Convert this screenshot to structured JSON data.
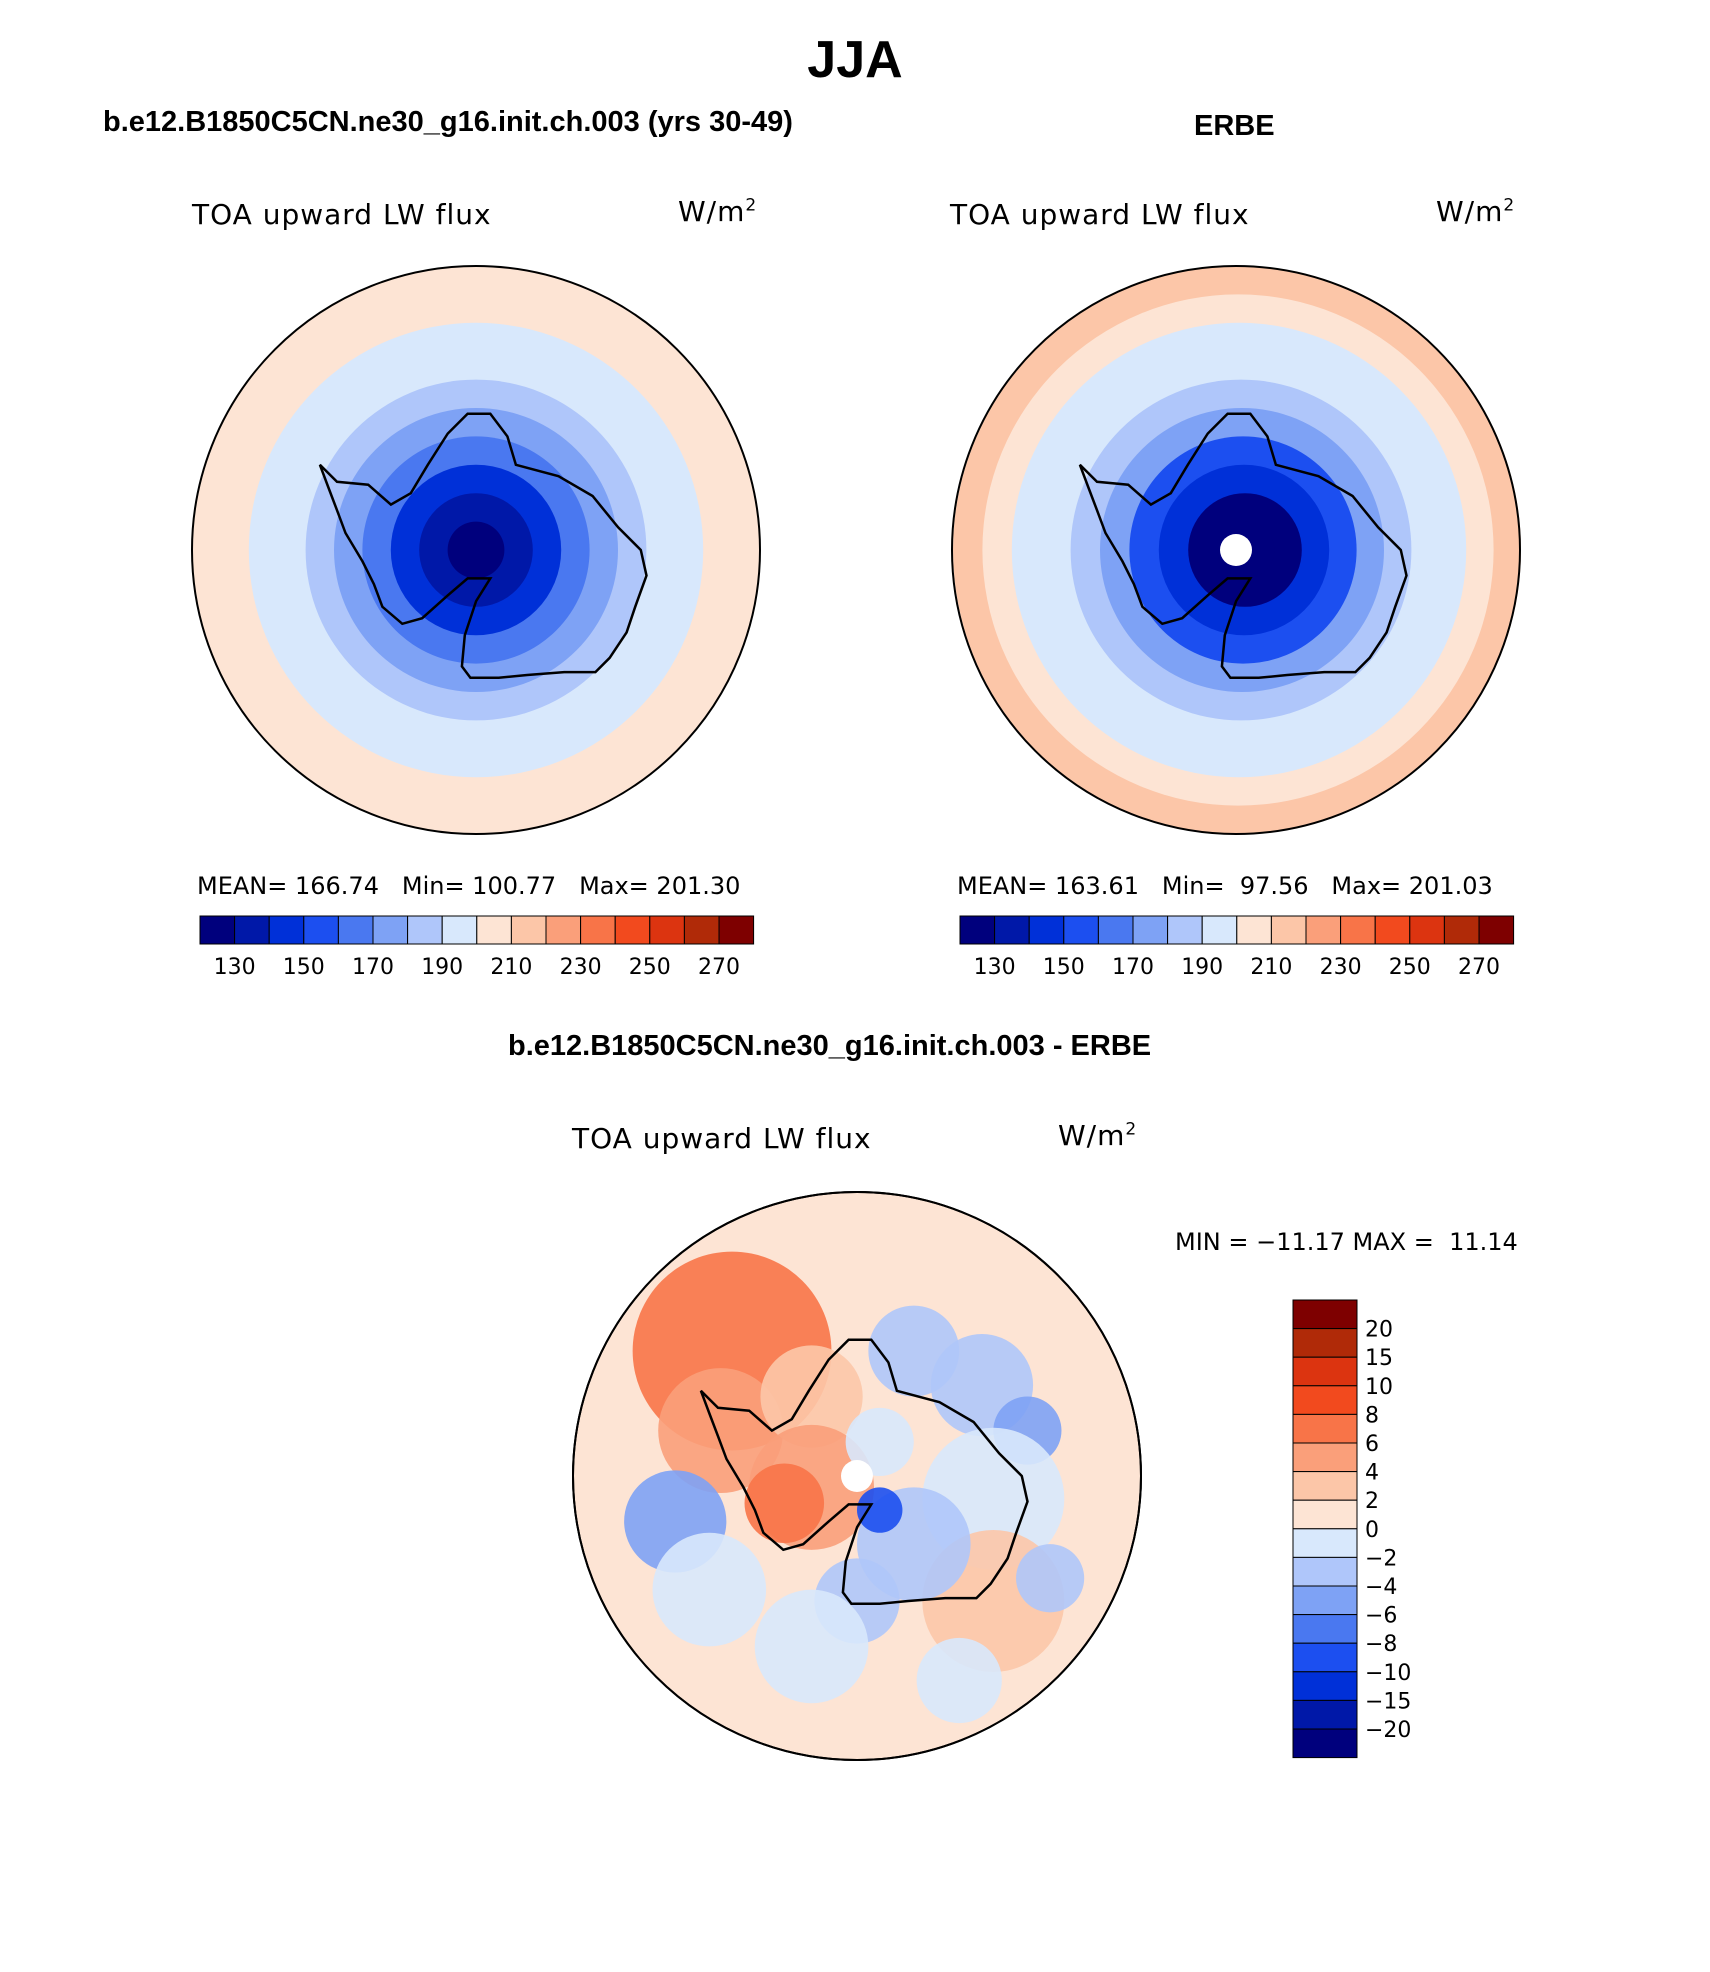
{
  "title": "JJA",
  "panels": [
    {
      "title": "b.e12.B1850C5CN.ne30_g16.init.ch.003 (yrs 30-49)",
      "variable": "TOA upward LW flux",
      "units_base": "W/m",
      "units_exp": "2",
      "stats": {
        "mean": "MEAN= 166.74",
        "min": "Min= 100.77",
        "max": "Max= 201.30"
      },
      "zonal_mean_by_ring": [
        100,
        120,
        135,
        150,
        165,
        175,
        182,
        186,
        190,
        194
      ]
    },
    {
      "title": "ERBE",
      "variable": "TOA upward LW flux",
      "units_base": "W/m",
      "units_exp": "2",
      "stats": {
        "mean": "MEAN= 163.61",
        "min": "Min=  97.56",
        "max": "Max= 201.03"
      },
      "zonal_mean_by_ring": [
        97,
        118,
        132,
        148,
        162,
        172,
        180,
        186,
        192,
        200
      ]
    },
    {
      "title": "b.e12.B1850C5CN.ne30_g16.init.ch.003 - ERBE",
      "variable": "TOA upward LW flux",
      "units_base": "W/m",
      "units_exp": "2",
      "minmax": "MIN = −11.17 MAX =  11.14"
    }
  ],
  "abs_colorbar": {
    "colors": [
      "#00007d",
      "#0018a8",
      "#0030d8",
      "#1c4ff0",
      "#4a78f0",
      "#7ea2f5",
      "#afc6fa",
      "#d8e8fc",
      "#fde4d4",
      "#fcc6a8",
      "#fa9f7a",
      "#f87448",
      "#f24a1e",
      "#dc3410",
      "#b02a08",
      "#7e0000"
    ],
    "tick_labels": [
      "130",
      "150",
      "170",
      "190",
      "210",
      "230",
      "250",
      "270"
    ]
  },
  "diff_colorbar": {
    "colors": [
      "#7e0000",
      "#b02a08",
      "#dc3410",
      "#f24a1e",
      "#f87448",
      "#fa9f7a",
      "#fcc6a8",
      "#fde4d4",
      "#d8e8fc",
      "#afc6fa",
      "#7ea2f5",
      "#4a78f0",
      "#1c4ff0",
      "#0030d8",
      "#0018a8",
      "#00007d"
    ],
    "tick_labels": [
      "20",
      "15",
      "10",
      "8",
      "6",
      "4",
      "2",
      "0",
      "−2",
      "−4",
      "−6",
      "−8",
      "−10",
      "−15",
      "−20"
    ]
  }
}
